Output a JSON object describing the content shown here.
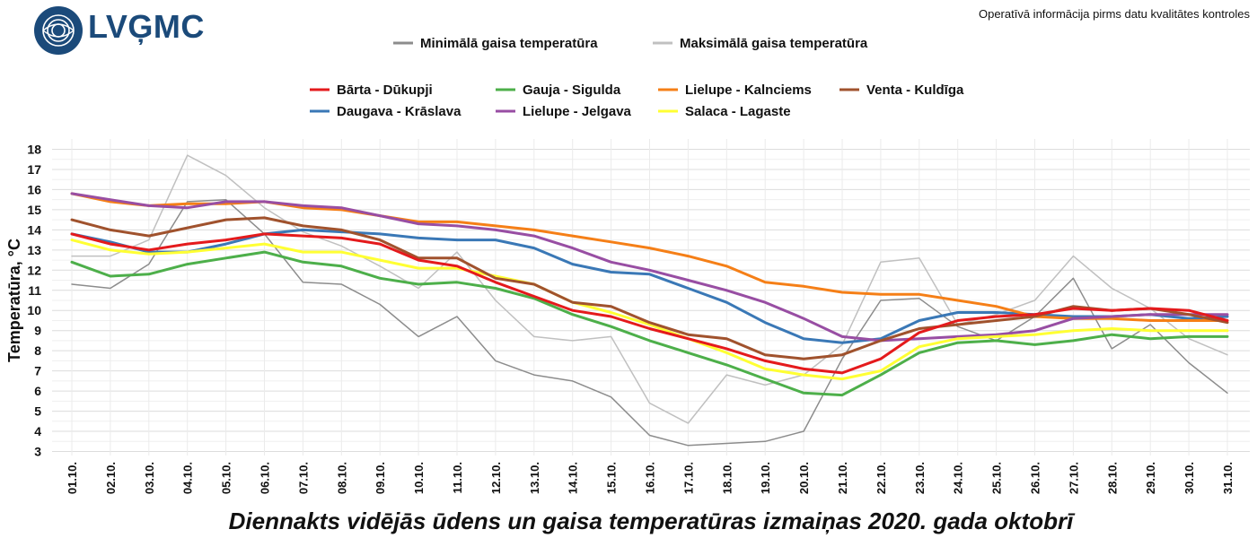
{
  "header": {
    "logo_text": "LVĢMC",
    "notice": "Operatīvā informācija pirms datu kvalitātes kontroles"
  },
  "chart_data": {
    "type": "line",
    "title": "Diennakts vidējās ūdens un gaisa temperatūras izmaiņas 2020. gada oktobrī",
    "xlabel": "",
    "ylabel": "Temperatūra, °C",
    "ylim": [
      3,
      18
    ],
    "yticks": [
      3,
      4,
      5,
      6,
      7,
      8,
      9,
      10,
      11,
      12,
      13,
      14,
      15,
      16,
      17,
      18
    ],
    "grid": true,
    "categories": [
      "01.10.",
      "02.10.",
      "03.10.",
      "04.10.",
      "05.10.",
      "06.10.",
      "07.10.",
      "08.10.",
      "09.10.",
      "10.10.",
      "11.10.",
      "12.10.",
      "13.10.",
      "14.10.",
      "15.10.",
      "16.10.",
      "17.10.",
      "18.10.",
      "19.10.",
      "20.10.",
      "21.10.",
      "22.10.",
      "23.10.",
      "24.10.",
      "25.10.",
      "26.10.",
      "27.10.",
      "28.10.",
      "29.10.",
      "30.10.",
      "31.10."
    ],
    "series": [
      {
        "name": "Minimālā gaisa temperatūra",
        "color": "#8c8c8c",
        "width": 1.5,
        "values": [
          11.3,
          11.1,
          12.3,
          15.4,
          15.5,
          13.8,
          11.4,
          11.3,
          10.3,
          8.7,
          9.7,
          7.5,
          6.8,
          6.5,
          5.7,
          3.8,
          3.3,
          3.4,
          3.5,
          4.0,
          7.6,
          10.5,
          10.6,
          9.2,
          8.5,
          9.7,
          11.6,
          8.1,
          9.3,
          7.4,
          5.9
        ]
      },
      {
        "name": "Maksimālā gaisa temperatūra",
        "color": "#c0c0c0",
        "width": 1.5,
        "values": [
          12.7,
          12.7,
          13.5,
          17.7,
          16.7,
          15.1,
          13.9,
          13.2,
          12.2,
          11.1,
          12.9,
          10.5,
          8.7,
          8.5,
          8.7,
          5.4,
          4.4,
          6.8,
          6.3,
          6.8,
          8.3,
          12.4,
          12.6,
          9.3,
          9.8,
          10.5,
          12.7,
          11.1,
          10.1,
          8.6,
          7.8
        ]
      },
      {
        "name": "Daugava - Krāslava",
        "color": "#3a78b6",
        "width": 3,
        "values": [
          13.8,
          13.4,
          12.9,
          12.9,
          13.3,
          13.8,
          14.0,
          13.9,
          13.8,
          13.6,
          13.5,
          13.5,
          13.1,
          12.3,
          11.9,
          11.8,
          11.1,
          10.4,
          9.4,
          8.6,
          8.4,
          8.6,
          9.5,
          9.9,
          9.9,
          9.8,
          9.7,
          9.7,
          9.8,
          9.6,
          9.7
        ]
      },
      {
        "name": "Lielupe - Kalnciems",
        "color": "#f57f17",
        "width": 3,
        "values": [
          15.8,
          15.4,
          15.2,
          15.3,
          15.3,
          15.4,
          15.1,
          15.0,
          14.7,
          14.4,
          14.4,
          14.2,
          14.0,
          13.7,
          13.4,
          13.1,
          12.7,
          12.2,
          11.4,
          11.2,
          10.9,
          10.8,
          10.8,
          10.5,
          10.2,
          9.7,
          9.6,
          9.6,
          9.5,
          9.5,
          9.5
        ]
      },
      {
        "name": "Lielupe - Jelgava",
        "color": "#984ea3",
        "width": 3,
        "values": [
          15.8,
          15.5,
          15.2,
          15.1,
          15.4,
          15.4,
          15.2,
          15.1,
          14.7,
          14.3,
          14.2,
          14.0,
          13.7,
          13.1,
          12.4,
          12.0,
          11.5,
          11.0,
          10.4,
          9.6,
          8.7,
          8.5,
          8.6,
          8.7,
          8.8,
          9.0,
          9.6,
          9.7,
          9.8,
          9.8,
          9.8
        ]
      },
      {
        "name": "Gauja - Sigulda",
        "color": "#4daf4a",
        "width": 3,
        "values": [
          12.4,
          11.7,
          11.8,
          12.3,
          12.6,
          12.9,
          12.4,
          12.2,
          11.6,
          11.3,
          11.4,
          11.1,
          10.6,
          9.8,
          9.2,
          8.5,
          7.9,
          7.3,
          6.6,
          5.9,
          5.8,
          6.8,
          7.9,
          8.4,
          8.5,
          8.3,
          8.5,
          8.8,
          8.6,
          8.7,
          8.7
        ]
      },
      {
        "name": "Salaca - Lagaste",
        "color": "#ffff33",
        "width": 3,
        "values": [
          13.5,
          13.0,
          12.8,
          12.9,
          13.1,
          13.3,
          12.9,
          12.9,
          12.5,
          12.1,
          12.1,
          11.7,
          11.3,
          10.4,
          9.9,
          9.3,
          8.6,
          7.9,
          7.1,
          6.8,
          6.6,
          7.0,
          8.2,
          8.6,
          8.7,
          8.8,
          9.0,
          9.1,
          9.0,
          9.0,
          9.0
        ]
      },
      {
        "name": "Venta - Kuldīga",
        "color": "#a0522d",
        "width": 3,
        "values": [
          14.5,
          14.0,
          13.7,
          14.1,
          14.5,
          14.6,
          14.2,
          14.0,
          13.5,
          12.6,
          12.6,
          11.6,
          11.3,
          10.4,
          10.2,
          9.4,
          8.8,
          8.6,
          7.8,
          7.6,
          7.8,
          8.5,
          9.1,
          9.3,
          9.5,
          9.7,
          10.2,
          10.0,
          10.1,
          9.8,
          9.4
        ]
      },
      {
        "name": "Bārta - Dūkupji",
        "color": "#e41a1c",
        "width": 3,
        "values": [
          13.8,
          13.3,
          13.0,
          13.3,
          13.5,
          13.8,
          13.7,
          13.6,
          13.3,
          12.5,
          12.2,
          11.4,
          10.7,
          10.0,
          9.7,
          9.1,
          8.6,
          8.1,
          7.5,
          7.1,
          6.9,
          7.6,
          8.9,
          9.5,
          9.7,
          9.8,
          10.1,
          10.0,
          10.1,
          10.0,
          9.5
        ]
      }
    ],
    "legend_top": [
      {
        "name": "Minimālā gaisa temperatūra",
        "color": "#8c8c8c"
      },
      {
        "name": "Maksimālā gaisa temperatūra",
        "color": "#c0c0c0"
      }
    ],
    "legend_rivers": [
      {
        "name": "Bārta - Dūkupji",
        "color": "#e41a1c"
      },
      {
        "name": "Daugava - Krāslava",
        "color": "#3a78b6"
      },
      {
        "name": "Gauja - Sigulda",
        "color": "#4daf4a"
      },
      {
        "name": "Lielupe - Jelgava",
        "color": "#984ea3"
      },
      {
        "name": "Lielupe - Kalnciems",
        "color": "#f57f17"
      },
      {
        "name": "Salaca - Lagaste",
        "color": "#ffff33"
      },
      {
        "name": "Venta - Kuldīga",
        "color": "#a0522d"
      }
    ]
  }
}
